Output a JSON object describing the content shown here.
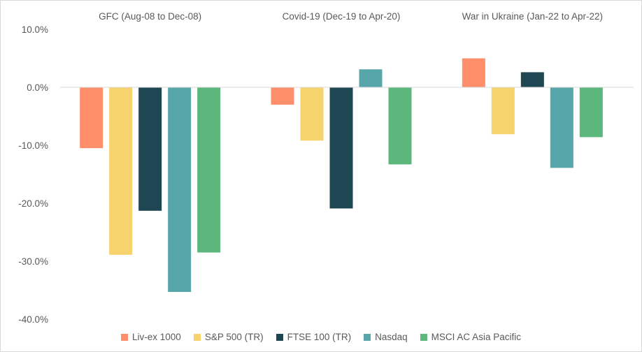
{
  "chart_data": {
    "type": "bar",
    "title": "",
    "xlabel": "",
    "ylabel": "",
    "ylim": [
      -40,
      10
    ],
    "y_tick_values": [
      10,
      0,
      -10,
      -20,
      -30,
      -40
    ],
    "y_tick_labels": [
      "10.0%",
      "0.0%",
      "-10.0%",
      "-20.0%",
      "-30.0%",
      "-40.0%"
    ],
    "categories": [
      "GFC (Aug-08 to Dec-08)",
      "Covid-19 (Dec-19 to Apr-20)",
      "War in Ukraine (Jan-22 to Apr-22)"
    ],
    "grid": false,
    "legend_position": "bottom",
    "series": [
      {
        "name": "Liv-ex 1000",
        "color": "#FF8F6B",
        "values": [
          -10.5,
          -3.0,
          5.0
        ]
      },
      {
        "name": "S&P 500 (TR)",
        "color": "#F7D36E",
        "values": [
          -28.9,
          -9.2,
          -8.1
        ]
      },
      {
        "name": "FTSE 100 (TR)",
        "color": "#1E4653",
        "values": [
          -21.3,
          -20.9,
          2.6
        ]
      },
      {
        "name": "Nasdaq",
        "color": "#57A6AA",
        "values": [
          -35.3,
          3.1,
          -13.9
        ]
      },
      {
        "name": "MSCI AC Asia Pacific",
        "color": "#5BB77B",
        "values": [
          -28.5,
          -13.3,
          -8.6
        ]
      }
    ]
  }
}
